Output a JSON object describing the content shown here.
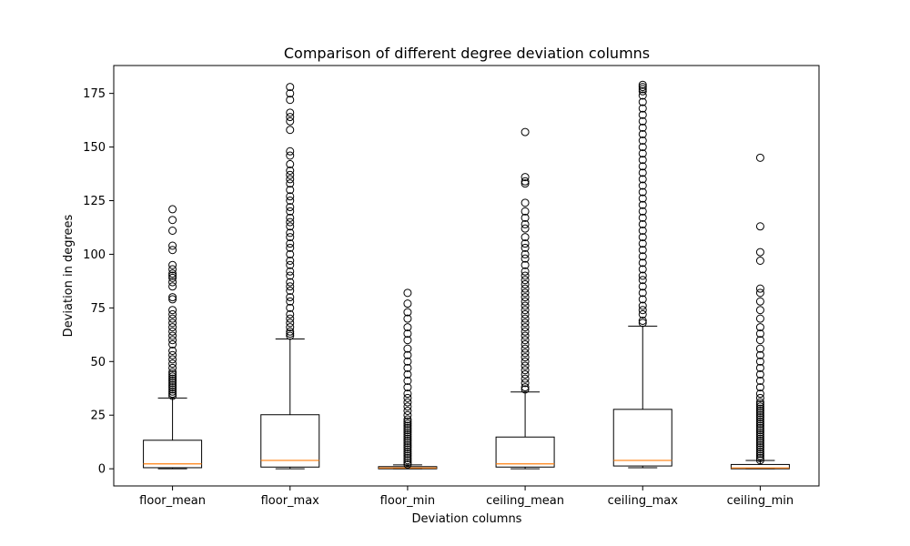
{
  "chart_data": {
    "type": "box",
    "title": "Comparison of different degree deviation columns",
    "xlabel": "Deviation columns",
    "ylabel": "Deviation in degrees",
    "ylim": [
      -8,
      188
    ],
    "yticks": [
      0,
      25,
      50,
      75,
      100,
      125,
      150,
      175
    ],
    "grid": false,
    "colors": {
      "box": "#000000",
      "median": "#ff7f0e",
      "flier": "#000000"
    },
    "categories": [
      "floor_mean",
      "floor_max",
      "floor_min",
      "ceiling_mean",
      "ceiling_max",
      "ceiling_min"
    ],
    "series": [
      {
        "category": "floor_mean",
        "whisker_low": 0,
        "q1": 0.5,
        "median": 2.3,
        "q3": 13.3,
        "whisker_high": 33,
        "outliers": [
          34,
          35,
          36,
          37,
          38,
          39,
          40,
          41,
          42,
          43,
          44,
          45,
          47,
          49,
          51,
          53,
          55,
          58,
          60,
          62,
          64,
          66,
          68,
          70,
          72,
          74,
          79,
          80,
          85,
          87,
          89,
          90,
          91,
          93,
          95,
          102,
          104,
          111,
          116,
          121
        ]
      },
      {
        "category": "floor_max",
        "whisker_low": 0,
        "q1": 0.8,
        "median": 3.9,
        "q3": 25.2,
        "whisker_high": 60.5,
        "outliers": [
          62,
          63,
          64,
          66,
          68,
          70,
          72,
          75,
          78,
          80,
          83,
          85,
          87,
          90,
          92,
          95,
          97,
          100,
          103,
          105,
          108,
          110,
          113,
          115,
          117,
          120,
          122,
          125,
          127,
          130,
          133,
          135,
          137,
          139,
          142,
          146,
          148,
          158,
          162,
          164,
          166,
          172,
          175,
          178
        ]
      },
      {
        "category": "floor_min",
        "whisker_low": 0,
        "q1": 0,
        "median": 0.4,
        "q3": 1,
        "whisker_high": 1.8,
        "outliers": [
          2,
          3,
          4,
          5,
          6,
          7,
          8,
          9,
          10,
          11,
          12,
          13,
          14,
          15,
          16,
          17,
          18,
          19,
          20,
          21,
          22,
          23,
          25,
          27,
          29,
          31,
          33,
          35,
          38,
          41,
          44,
          47,
          50,
          53,
          56,
          60,
          63,
          66,
          70,
          73,
          77,
          82
        ]
      },
      {
        "category": "ceiling_mean",
        "whisker_low": 0,
        "q1": 0.8,
        "median": 2.3,
        "q3": 14.8,
        "whisker_high": 35.8,
        "outliers": [
          37,
          38,
          40,
          42,
          44,
          46,
          48,
          50,
          52,
          54,
          56,
          58,
          60,
          62,
          64,
          66,
          68,
          70,
          72,
          74,
          76,
          78,
          80,
          82,
          84,
          86,
          88,
          90,
          92,
          95,
          98,
          100,
          103,
          105,
          108,
          112,
          114,
          117,
          120,
          124,
          133,
          134,
          136,
          157
        ]
      },
      {
        "category": "ceiling_max",
        "whisker_low": 0.5,
        "q1": 1.3,
        "median": 3.9,
        "q3": 27.7,
        "whisker_high": 66.5,
        "outliers": [
          68,
          69,
          72,
          74,
          76,
          79,
          82,
          85,
          88,
          90,
          93,
          96,
          99,
          102,
          105,
          108,
          111,
          114,
          117,
          120,
          123,
          126,
          129,
          132,
          135,
          138,
          141,
          144,
          147,
          150,
          153,
          156,
          159,
          162,
          165,
          168,
          171,
          174,
          176,
          177,
          178,
          179
        ]
      },
      {
        "category": "ceiling_min",
        "whisker_low": 0,
        "q1": 0,
        "median": 0.4,
        "q3": 2,
        "whisker_high": 3.9,
        "outliers": [
          4,
          5,
          6,
          7,
          8,
          9,
          10,
          11,
          12,
          13,
          14,
          15,
          16,
          17,
          18,
          19,
          20,
          21,
          22,
          23,
          24,
          25,
          26,
          27,
          28,
          29,
          30,
          31,
          33,
          35,
          38,
          41,
          44,
          47,
          50,
          53,
          56,
          60,
          63,
          66,
          70,
          74,
          78,
          82,
          84,
          97,
          101,
          113,
          145
        ]
      }
    ]
  }
}
